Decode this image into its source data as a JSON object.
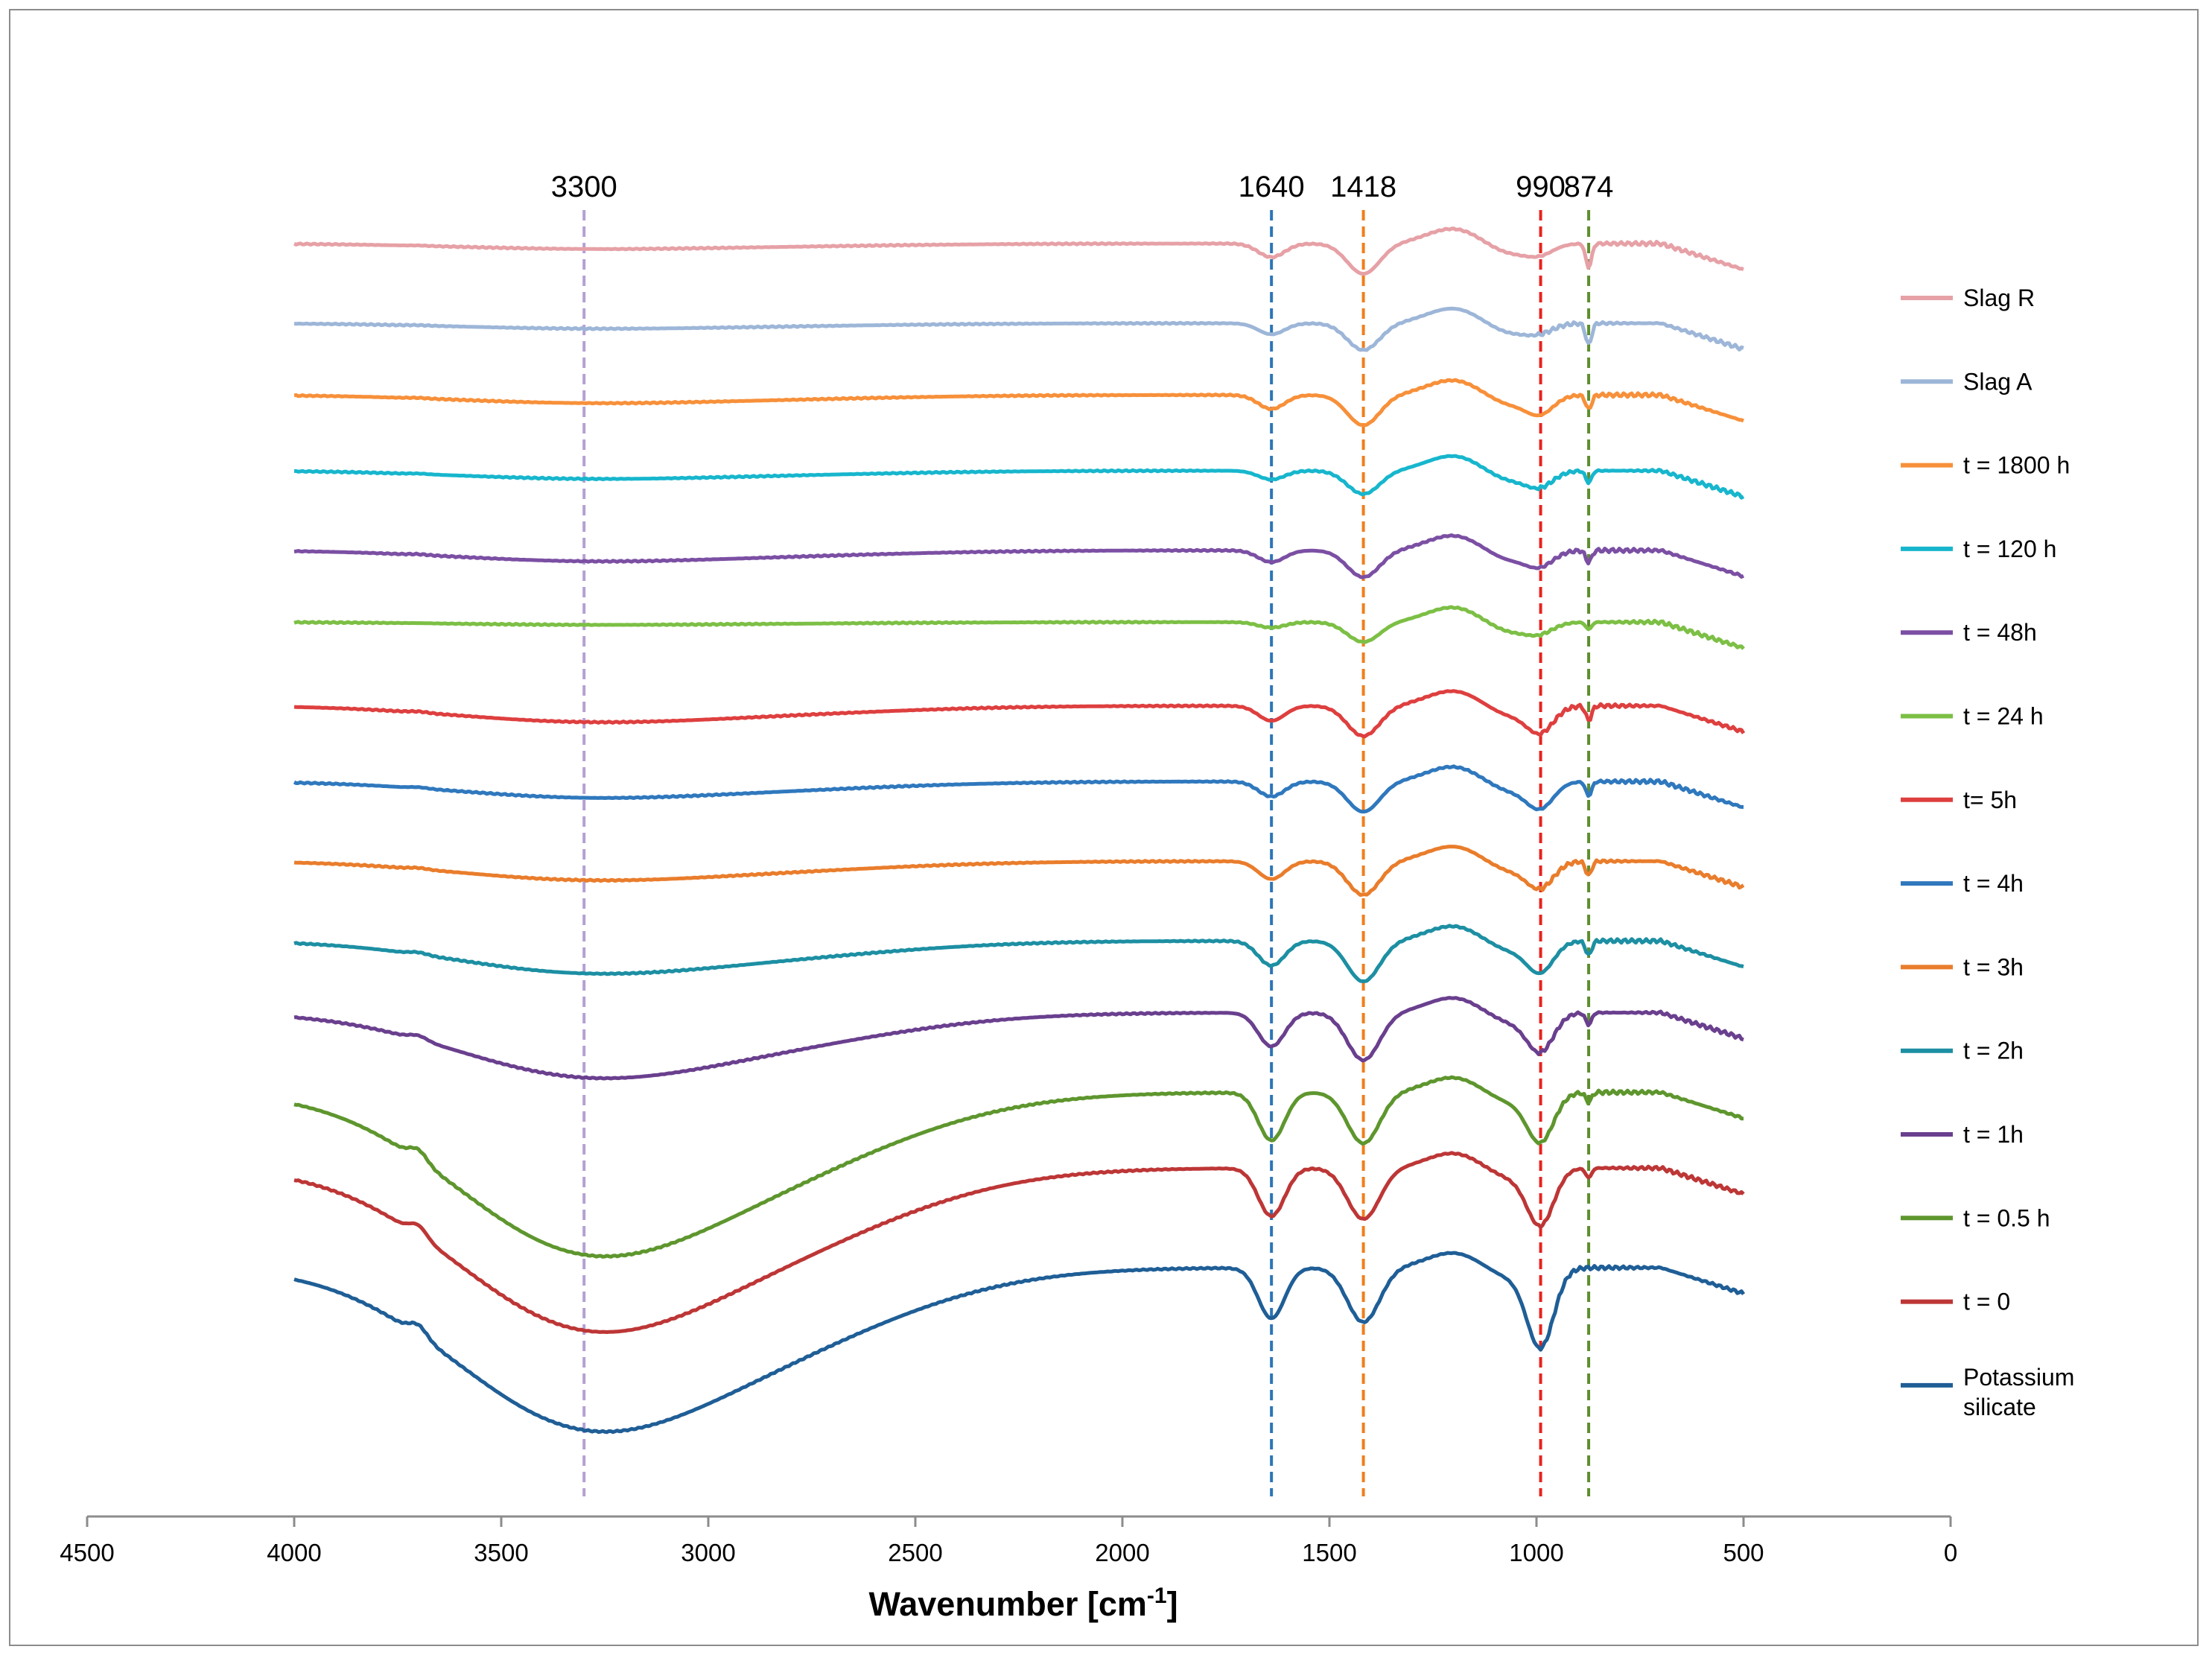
{
  "chart_data": {
    "type": "line",
    "title": "",
    "xlabel": "Wavenumber [cm",
    "xlabel_sup": "-1",
    "xlabel_end": "]",
    "ylabel": "",
    "xlim": [
      4500,
      0
    ],
    "xticks": [
      4500,
      4000,
      3500,
      3000,
      2500,
      2000,
      1500,
      1000,
      500,
      0
    ],
    "grid": false,
    "legend_position": "right",
    "annotations": [
      {
        "label": "3300",
        "x": 3300,
        "color": "#b5a0d2"
      },
      {
        "label": "1640",
        "x": 1640,
        "color": "#2e75b6"
      },
      {
        "label": "1418",
        "x": 1418,
        "color": "#f07f1c"
      },
      {
        "label": "990",
        "x": 990,
        "color": "#e8221d"
      },
      {
        "label": "874",
        "x": 874,
        "color": "#5e8e2e"
      }
    ],
    "series": [
      {
        "name": "Slag R",
        "color": "#e6a1a6",
        "offset": 0.0,
        "band_depth": 0.25,
        "water": 0.1,
        "silicate": 0.5,
        "carbonate": 1.0
      },
      {
        "name": "Slag A",
        "color": "#9db6d8",
        "offset": 1.0,
        "band_depth": 0.2,
        "water": 0.1,
        "silicate": 0.4,
        "carbonate": 0.9
      },
      {
        "name": "t = 1800 h",
        "color": "#f7903a",
        "offset": 1.9,
        "band_depth": 0.25,
        "water": 0.15,
        "silicate": 1.0,
        "carbonate": 0.6
      },
      {
        "name": "t = 120 h",
        "color": "#17b6cd",
        "offset": 2.85,
        "band_depth": 0.15,
        "water": 0.15,
        "silicate": 0.8,
        "carbonate": 0.5
      },
      {
        "name": "t = 48h",
        "color": "#7b4fa3",
        "offset": 3.85,
        "band_depth": 0.2,
        "water": 0.2,
        "silicate": 0.8,
        "carbonate": 0.5
      },
      {
        "name": "t = 24 h",
        "color": "#7cbf45",
        "offset": 4.75,
        "band_depth": 0.1,
        "water": 0.05,
        "silicate": 0.5,
        "carbonate": 0.3
      },
      {
        "name": "t= 5h",
        "color": "#de3f3f",
        "offset": 5.8,
        "band_depth": 0.25,
        "water": 0.3,
        "silicate": 1.5,
        "carbonate": 0.6
      },
      {
        "name": "t = 4h",
        "color": "#2f78bd",
        "offset": 6.75,
        "band_depth": 0.25,
        "water": 0.3,
        "silicate": 1.5,
        "carbonate": 0.6
      },
      {
        "name": "t = 3h",
        "color": "#e97d2c",
        "offset": 7.75,
        "band_depth": 0.3,
        "water": 0.35,
        "silicate": 1.5,
        "carbonate": 0.6
      },
      {
        "name": "t = 2h",
        "color": "#1d8fa3",
        "offset": 8.75,
        "band_depth": 0.4,
        "water": 0.6,
        "silicate": 1.8,
        "carbonate": 0.6
      },
      {
        "name": "t = 1h",
        "color": "#6a3f8e",
        "offset": 9.65,
        "band_depth": 0.5,
        "water": 1.2,
        "silicate": 2.3,
        "carbonate": 0.5
      },
      {
        "name": "t = 0.5 h",
        "color": "#5e962e",
        "offset": 10.65,
        "band_depth": 0.55,
        "water": 3.0,
        "silicate": 3.0,
        "carbonate": 0.4
      },
      {
        "name": "t = 0",
        "color": "#bd3636",
        "offset": 11.6,
        "band_depth": 0.55,
        "water": 3.0,
        "silicate": 3.5,
        "carbonate": 0.4
      },
      {
        "name": "Potassium silicate",
        "name_line1": "Potassium",
        "name_line2": "silicate",
        "color": "#1f5e96",
        "offset": 12.85,
        "band_depth": 0.6,
        "water": 3.0,
        "silicate": 5.0,
        "carbonate": 0.0
      }
    ]
  }
}
